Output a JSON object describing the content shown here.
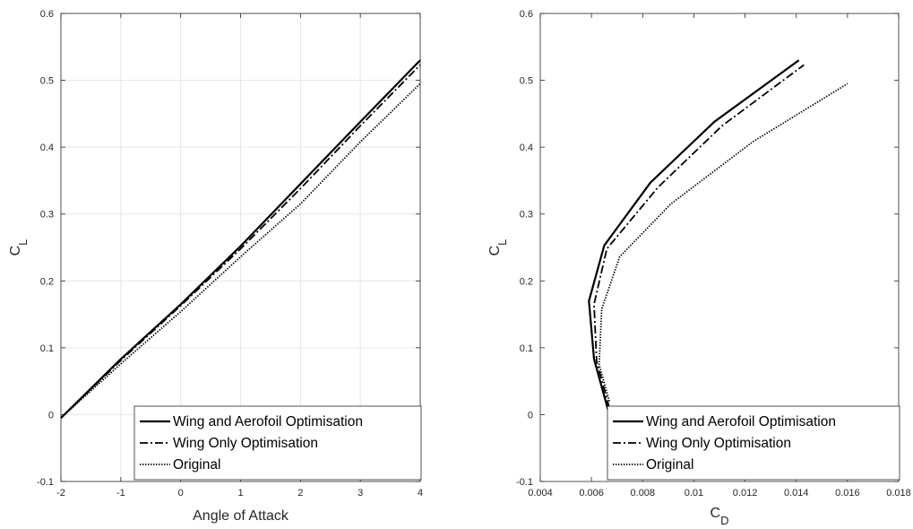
{
  "chart_data": [
    {
      "type": "line",
      "xlabel": "Angle of Attack",
      "ylabel": {
        "main": "C",
        "sub": "L"
      },
      "xlim": [
        -2,
        4
      ],
      "ylim": [
        -0.1,
        0.6
      ],
      "xticks": [
        "-2",
        "-1",
        "0",
        "1",
        "2",
        "3",
        "4"
      ],
      "yticks": [
        "-0.1",
        "0",
        "0.1",
        "0.2",
        "0.3",
        "0.4",
        "0.5",
        "0.6"
      ],
      "grid": true,
      "legend_position": "bottom-right",
      "series": [
        {
          "name": "Wing and Aerofoil Optimisation",
          "style": "solid",
          "points": [
            [
              -2,
              -0.005
            ],
            [
              -1,
              0.083
            ],
            [
              0,
              0.165
            ],
            [
              1,
              0.252
            ],
            [
              2,
              0.345
            ],
            [
              3,
              0.438
            ],
            [
              4,
              0.53
            ]
          ]
        },
        {
          "name": "Wing Only Optimisation",
          "style": "dashdot",
          "points": [
            [
              -2,
              -0.005
            ],
            [
              -1,
              0.081
            ],
            [
              0,
              0.163
            ],
            [
              1,
              0.248
            ],
            [
              2,
              0.338
            ],
            [
              3,
              0.432
            ],
            [
              4,
              0.523
            ]
          ]
        },
        {
          "name": "Original",
          "style": "dotted",
          "points": [
            [
              -2,
              -0.005
            ],
            [
              -1,
              0.076
            ],
            [
              0,
              0.154
            ],
            [
              1,
              0.236
            ],
            [
              2,
              0.315
            ],
            [
              3,
              0.408
            ],
            [
              4,
              0.495
            ]
          ]
        }
      ]
    },
    {
      "type": "line",
      "xlabel": {
        "main": "C",
        "sub": "D"
      },
      "ylabel": {
        "main": "C",
        "sub": "L"
      },
      "xlim": [
        0.004,
        0.018
      ],
      "ylim": [
        -0.1,
        0.6
      ],
      "xticks": [
        "0.004",
        "0.006",
        "0.008",
        "0.01",
        "0.012",
        "0.014",
        "0.016",
        "0.018"
      ],
      "yticks": [
        "-0.1",
        "0",
        "0.1",
        "0.2",
        "0.3",
        "0.4",
        "0.5",
        "0.6"
      ],
      "grid": false,
      "legend_position": "bottom-right",
      "series": [
        {
          "name": "Wing and Aerofoil Optimisation",
          "style": "solid",
          "points": [
            [
              0.0067,
              0.0
            ],
            [
              0.0061,
              0.083
            ],
            [
              0.0059,
              0.17
            ],
            [
              0.0065,
              0.253
            ],
            [
              0.0083,
              0.347
            ],
            [
              0.0108,
              0.438
            ],
            [
              0.0141,
              0.53
            ]
          ]
        },
        {
          "name": "Wing Only Optimisation",
          "style": "dashdot",
          "points": [
            [
              0.0067,
              0.01
            ],
            [
              0.0062,
              0.08
            ],
            [
              0.0061,
              0.165
            ],
            [
              0.0066,
              0.248
            ],
            [
              0.0086,
              0.34
            ],
            [
              0.0111,
              0.432
            ],
            [
              0.0143,
              0.523
            ]
          ]
        },
        {
          "name": "Original",
          "style": "dotted",
          "points": [
            [
              0.0067,
              0.02
            ],
            [
              0.0063,
              0.075
            ],
            [
              0.0064,
              0.158
            ],
            [
              0.0071,
              0.236
            ],
            [
              0.0091,
              0.315
            ],
            [
              0.0123,
              0.408
            ],
            [
              0.016,
              0.495
            ]
          ]
        }
      ]
    }
  ]
}
